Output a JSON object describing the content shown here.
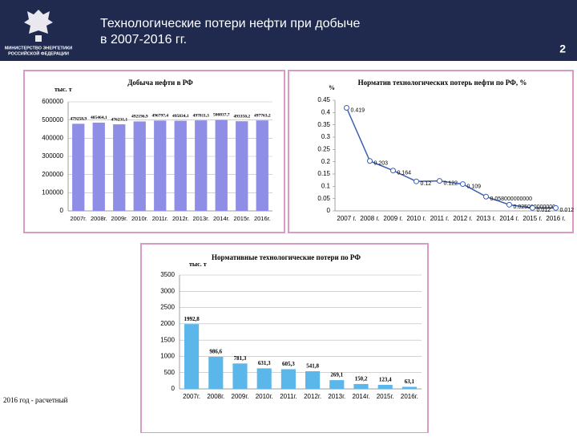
{
  "header": {
    "ministry": [
      "МИНИСТЕРСТВО ЭНЕРГЕТИКИ",
      "РОССИЙСКОЙ ФЕДЕРАЦИИ"
    ],
    "title": [
      "Технологические потери нефти при добыче",
      "в 2007-2016 гг."
    ],
    "page_number": "2"
  },
  "chart_data": [
    {
      "type": "bar",
      "title": "Добыча нефти в РФ",
      "y_label": "тыс. т",
      "categories": [
        "2007г.",
        "2008г.",
        "2009г.",
        "2010г.",
        "2011г.",
        "2012г.",
        "2013г.",
        "2014г.",
        "2015г.",
        "2016г."
      ],
      "values": [
        479258.9,
        485464.1,
        476231.1,
        492196.9,
        496797.4,
        495834.1,
        497811.3,
        500837.7,
        493350.2,
        497763.2
      ],
      "value_labels": [
        "479258,9",
        "485464,1",
        "476231,1",
        "492196,9",
        "496797,4",
        "495834,1",
        "497811,3",
        "500837,7",
        "493350,2",
        "497763,2"
      ],
      "color": "#8e8ee6",
      "ylim": [
        0,
        600000
      ],
      "yticks": [
        0,
        100000,
        200000,
        300000,
        400000,
        500000,
        600000
      ],
      "grid": true
    },
    {
      "type": "line",
      "title": "Норматив технологических потерь нефти по РФ, %",
      "y_label": "%",
      "categories": [
        "2007 г.",
        "2008 г.",
        "2009 г.",
        "2010 г.",
        "2011 г.",
        "2012 г.",
        "2013 г.",
        "2014 г.",
        "2015 г.",
        "2016 г."
      ],
      "values": [
        0.419,
        0.203,
        0.164,
        0.12,
        0.122,
        0.109,
        0.058,
        0.025,
        0.012,
        0.012
      ],
      "value_labels": [
        "0.419",
        "0.203",
        "0.164",
        "0.12",
        "0.122",
        "0.109",
        "0.058000000000",
        "0.025000000000",
        "0.012",
        "0.012"
      ],
      "color": "#3a5fb0",
      "ylim": [
        0,
        0.45
      ],
      "yticks": [
        0,
        0.05,
        0.1,
        0.15,
        0.2,
        0.25,
        0.3,
        0.35,
        0.4,
        0.45
      ],
      "grid": false
    },
    {
      "type": "bar",
      "title": "Нормативные технологические потери по РФ",
      "y_label": "тыс. т",
      "categories": [
        "2007г.",
        "2008г.",
        "2009г.",
        "2010г.",
        "2011г.",
        "2012г.",
        "2013г.",
        "2014г.",
        "2015г.",
        "2016г."
      ],
      "values": [
        1992.8,
        986.6,
        781.3,
        631.3,
        605.3,
        541.8,
        269.1,
        150.2,
        123.4,
        63.1
      ],
      "value_labels": [
        "1992,8",
        "986,6",
        "781,3",
        "631,3",
        "605,3",
        "541,8",
        "269,1",
        "150,2",
        "123,4",
        "63,1"
      ],
      "color": "#5bb6ea",
      "ylim": [
        0,
        3500
      ],
      "yticks": [
        0,
        500,
        1000,
        1500,
        2000,
        2500,
        3000,
        3500
      ],
      "grid": true
    }
  ],
  "footnote": "2016 год - расчетный"
}
